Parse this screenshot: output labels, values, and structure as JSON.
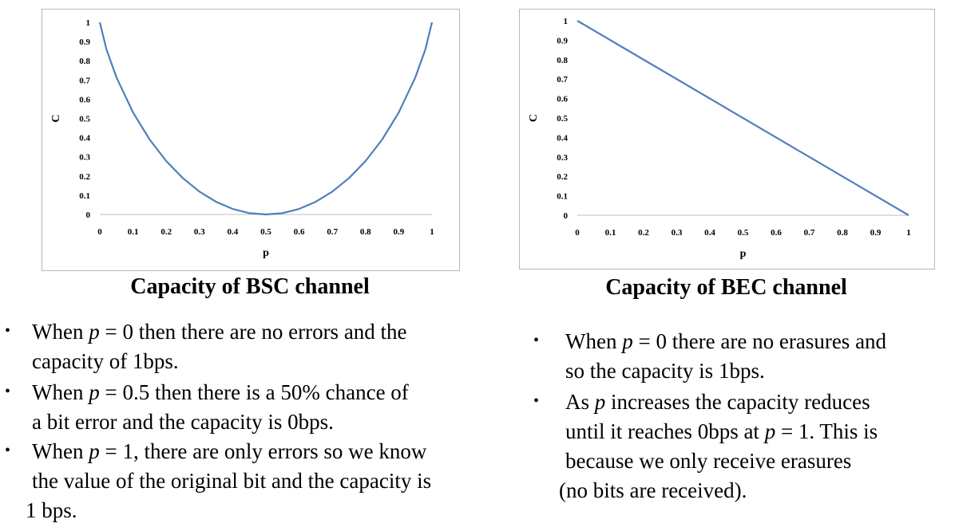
{
  "chart_data": [
    {
      "type": "line",
      "title": "",
      "caption": "Capacity of BSC channel",
      "xlabel": "p",
      "ylabel": "C",
      "xlim": [
        0,
        1
      ],
      "ylim": [
        0,
        1
      ],
      "x_ticks": [
        "0",
        "0.1",
        "0.2",
        "0.3",
        "0.4",
        "0.5",
        "0.6",
        "0.7",
        "0.8",
        "0.9",
        "1"
      ],
      "y_ticks": [
        "0",
        "0.1",
        "0.2",
        "0.3",
        "0.4",
        "0.5",
        "0.6",
        "0.7",
        "0.8",
        "0.9",
        "1"
      ],
      "grid": false,
      "color": "#4f7fbd",
      "series": [
        {
          "x": [
            0,
            0.02,
            0.05,
            0.1,
            0.15,
            0.2,
            0.25,
            0.3,
            0.35,
            0.4,
            0.45,
            0.5,
            0.55,
            0.6,
            0.65,
            0.7,
            0.75,
            0.8,
            0.85,
            0.9,
            0.95,
            0.98,
            1
          ],
          "values": [
            1,
            0.859,
            0.714,
            0.531,
            0.39,
            0.278,
            0.189,
            0.119,
            0.066,
            0.029,
            0.007,
            0,
            0.007,
            0.029,
            0.066,
            0.119,
            0.189,
            0.278,
            0.39,
            0.531,
            0.714,
            0.859,
            1
          ]
        }
      ]
    },
    {
      "type": "line",
      "title": "",
      "caption": "Capacity of BEC channel",
      "xlabel": "p",
      "ylabel": "C",
      "xlim": [
        0,
        1
      ],
      "ylim": [
        0,
        1
      ],
      "x_ticks": [
        "0",
        "0.1",
        "0.2",
        "0.3",
        "0.4",
        "0.5",
        "0.6",
        "0.7",
        "0.8",
        "0.9",
        "1"
      ],
      "y_ticks": [
        "0",
        "0.1",
        "0.2",
        "0.3",
        "0.4",
        "0.5",
        "0.6",
        "0.7",
        "0.8",
        "0.9",
        "1"
      ],
      "grid": false,
      "color": "#4f7fbd",
      "series": [
        {
          "x": [
            0,
            1
          ],
          "values": [
            1,
            0
          ]
        }
      ]
    }
  ],
  "notes": {
    "bsc": [
      {
        "lines": [
          "When p = 0 then there are no errors and the",
          "capacity of 1bps."
        ]
      },
      {
        "lines": [
          "When p = 0.5 then there is a 50% chance of",
          "a bit error and the capacity is 0bps."
        ]
      },
      {
        "lines": [
          "When p = 1, there are only errors so we know",
          "the value of the original bit and the capacity is",
          "1 bps."
        ]
      }
    ],
    "bec": [
      {
        "lines": [
          "When p = 0 there are no erasures and",
          "so the capacity is 1bps."
        ]
      },
      {
        "lines": [
          "As p increases the capacity reduces",
          "until it reaches 0bps at p = 1. This is",
          "because we only receive erasures",
          "(no bits are received)."
        ]
      }
    ]
  }
}
